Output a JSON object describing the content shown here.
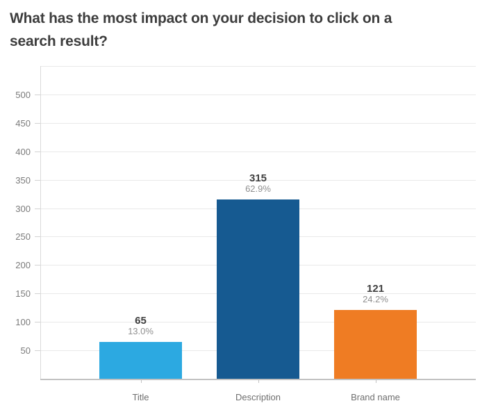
{
  "page": {
    "title_line1": "What has the most impact on your decision to click on a",
    "title_line2": "search result?"
  },
  "chart_data": {
    "type": "bar",
    "title": "What has the most impact on your decision to click on a search result?",
    "categories": [
      "Title",
      "Description",
      "Brand name"
    ],
    "values": [
      65,
      315,
      121
    ],
    "value_labels": [
      "65",
      "315",
      "121"
    ],
    "percent_labels": [
      "13.0%",
      "62.9%",
      "24.2%"
    ],
    "series_colors": [
      "#2ca9e1",
      "#165a91",
      "#ef7c23"
    ],
    "xlabel": "",
    "ylabel": "",
    "ylim": [
      0,
      550
    ],
    "yticks": [
      50,
      100,
      150,
      200,
      250,
      300,
      350,
      400,
      450,
      500
    ],
    "grid": true,
    "legend": false,
    "colors": {
      "gridline": "#e9e9e9",
      "bottom_axis": "#c2c2c2",
      "left_axis": "#dadada",
      "ytick_label": "#7b7b7b",
      "category_label": "#6e6e6e",
      "value_label": "#3f3f3f",
      "percent_label": "#8f8f8f",
      "title_text": "#3d3d3d",
      "background": "#ffffff"
    }
  }
}
